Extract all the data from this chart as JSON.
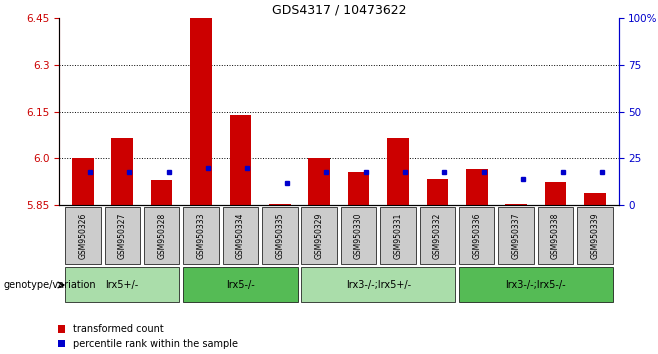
{
  "title": "GDS4317 / 10473622",
  "samples": [
    "GSM950326",
    "GSM950327",
    "GSM950328",
    "GSM950333",
    "GSM950334",
    "GSM950335",
    "GSM950329",
    "GSM950330",
    "GSM950331",
    "GSM950332",
    "GSM950336",
    "GSM950337",
    "GSM950338",
    "GSM950339"
  ],
  "red_values": [
    6.0,
    6.065,
    5.93,
    6.45,
    6.14,
    5.855,
    6.0,
    5.955,
    6.065,
    5.935,
    5.965,
    5.855,
    5.925,
    5.89
  ],
  "blue_percents": [
    18,
    18,
    18,
    20,
    20,
    12,
    18,
    18,
    18,
    18,
    18,
    14,
    18,
    18
  ],
  "ymin": 5.85,
  "ymax": 6.45,
  "yticks": [
    5.85,
    6.0,
    6.15,
    6.3,
    6.45
  ],
  "right_yticks": [
    0,
    25,
    50,
    75,
    100
  ],
  "right_ytick_labels": [
    "0",
    "25",
    "50",
    "75",
    "100%"
  ],
  "genotype_groups": [
    {
      "label": "lrx5+/-",
      "start": 0,
      "end": 3,
      "color": "#aaddaa"
    },
    {
      "label": "lrx5-/-",
      "start": 3,
      "end": 6,
      "color": "#55bb55"
    },
    {
      "label": "lrx3-/-;lrx5+/-",
      "start": 6,
      "end": 10,
      "color": "#aaddaa"
    },
    {
      "label": "lrx3-/-;lrx5-/-",
      "start": 10,
      "end": 14,
      "color": "#55bb55"
    }
  ],
  "bar_color_red": "#CC0000",
  "bar_color_blue": "#0000CC",
  "bar_width": 0.55,
  "legend_red": "transformed count",
  "legend_blue": "percentile rank within the sample",
  "genotype_label": "genotype/variation",
  "ylabel_color_left": "#CC0000",
  "ylabel_color_right": "#0000CC",
  "background_color": "#ffffff",
  "tick_label_bg": "#cccccc"
}
